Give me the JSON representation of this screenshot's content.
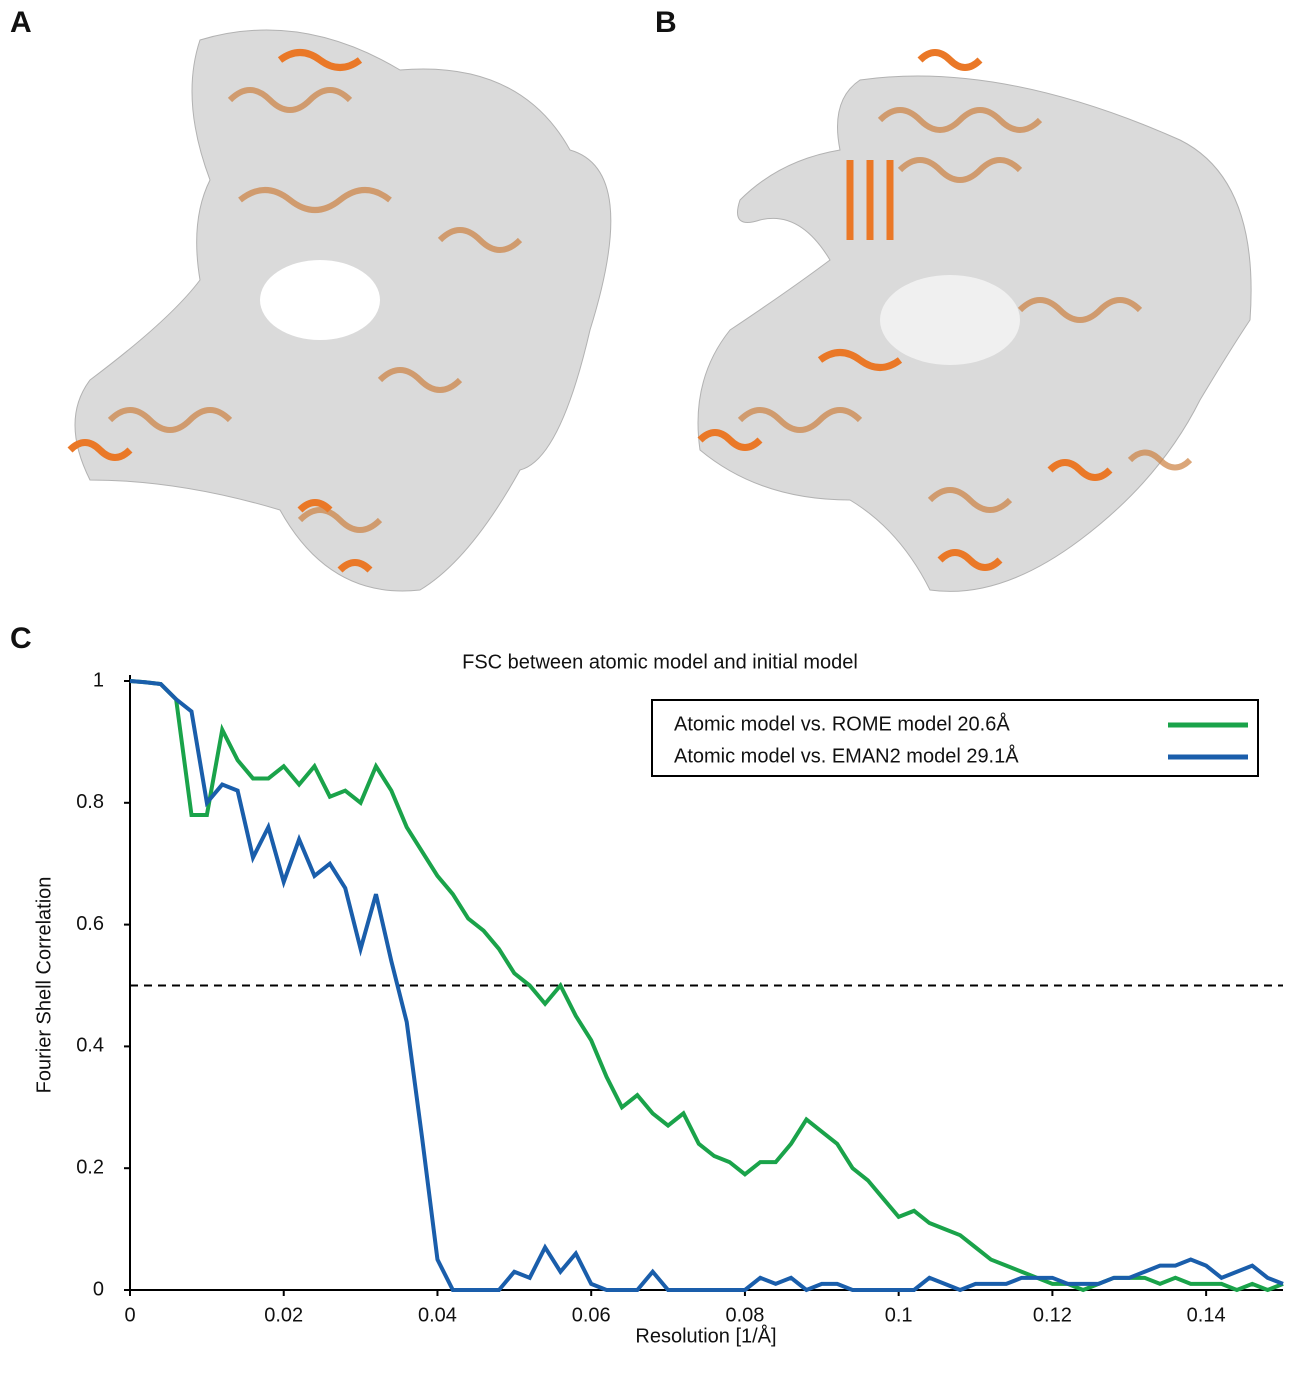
{
  "panels": {
    "a": {
      "label": "A"
    },
    "b": {
      "label": "B"
    },
    "c": {
      "label": "C"
    }
  },
  "chart_data": {
    "type": "line",
    "title": "FSC between atomic model and initial model",
    "x_label": "Resolution [1/Å]",
    "y_label": "Fourier Shell Correlation",
    "x": [
      0,
      0.002,
      0.004,
      0.006,
      0.008,
      0.01,
      0.012,
      0.014,
      0.016,
      0.018,
      0.02,
      0.022,
      0.024,
      0.026,
      0.028,
      0.03,
      0.032,
      0.034,
      0.036,
      0.038,
      0.04,
      0.042,
      0.044,
      0.046,
      0.048,
      0.05,
      0.052,
      0.054,
      0.056,
      0.058,
      0.06,
      0.062,
      0.064,
      0.066,
      0.068,
      0.07,
      0.072,
      0.074,
      0.076,
      0.078,
      0.08,
      0.082,
      0.084,
      0.086,
      0.088,
      0.09,
      0.092,
      0.094,
      0.096,
      0.098,
      0.1,
      0.102,
      0.104,
      0.106,
      0.108,
      0.11,
      0.112,
      0.114,
      0.116,
      0.118,
      0.12,
      0.122,
      0.124,
      0.126,
      0.128,
      0.13,
      0.132,
      0.134,
      0.136,
      0.138,
      0.14,
      0.142,
      0.144,
      0.146,
      0.148,
      0.15
    ],
    "series": [
      {
        "name": "Atomic model vs. ROME model 20.6Å",
        "color": "#1aa34a",
        "values": [
          1,
          0.998,
          0.995,
          0.97,
          0.78,
          0.78,
          0.92,
          0.87,
          0.84,
          0.84,
          0.86,
          0.83,
          0.86,
          0.81,
          0.82,
          0.8,
          0.86,
          0.82,
          0.76,
          0.72,
          0.68,
          0.65,
          0.61,
          0.59,
          0.56,
          0.52,
          0.5,
          0.47,
          0.5,
          0.45,
          0.41,
          0.35,
          0.3,
          0.32,
          0.29,
          0.27,
          0.29,
          0.24,
          0.22,
          0.21,
          0.19,
          0.21,
          0.21,
          0.24,
          0.28,
          0.26,
          0.24,
          0.2,
          0.18,
          0.15,
          0.12,
          0.13,
          0.11,
          0.1,
          0.09,
          0.07,
          0.05,
          0.04,
          0.03,
          0.02,
          0.01,
          0.01,
          0,
          0.01,
          0.02,
          0.02,
          0.02,
          0.01,
          0.02,
          0.01,
          0.01,
          0.01,
          0,
          0.01,
          0,
          0.01
        ]
      },
      {
        "name": "Atomic model vs. EMAN2 model 29.1Å",
        "color": "#1a5eab",
        "values": [
          1,
          0.998,
          0.995,
          0.97,
          0.95,
          0.8,
          0.83,
          0.82,
          0.71,
          0.76,
          0.67,
          0.74,
          0.68,
          0.7,
          0.66,
          0.56,
          0.65,
          0.54,
          0.44,
          0.25,
          0.05,
          0,
          0,
          0,
          0,
          0.03,
          0.02,
          0.07,
          0.03,
          0.06,
          0.01,
          0,
          0,
          0,
          0.03,
          0,
          0,
          0,
          0,
          0,
          0,
          0.02,
          0.01,
          0.02,
          0,
          0.01,
          0.01,
          0,
          0,
          0,
          0,
          0,
          0.02,
          0.01,
          0,
          0.01,
          0.01,
          0.01,
          0.02,
          0.02,
          0.02,
          0.01,
          0.01,
          0.01,
          0.02,
          0.02,
          0.03,
          0.04,
          0.04,
          0.05,
          0.04,
          0.02,
          0.03,
          0.04,
          0.02,
          0.01
        ]
      }
    ],
    "reference_line": 0.5,
    "xlim": [
      0,
      0.15
    ],
    "xticks": [
      0,
      0.02,
      0.04,
      0.06,
      0.08,
      0.1,
      0.12,
      0.14
    ],
    "ylim": [
      0,
      1
    ],
    "yticks": [
      0,
      0.2,
      0.4,
      0.6,
      0.8,
      1
    ],
    "legend": "top-right"
  }
}
